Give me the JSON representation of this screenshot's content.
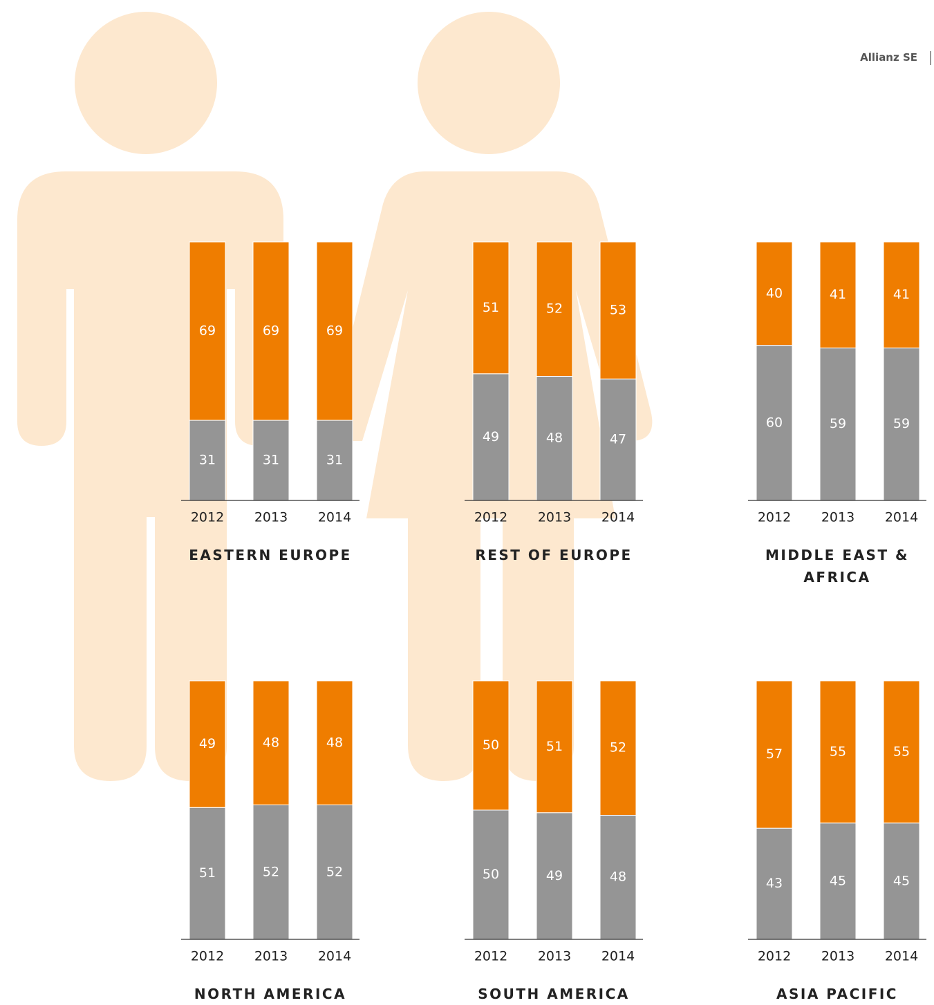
{
  "header": "Allianz SE",
  "chart_data": [
    {
      "type": "bar",
      "stacked": true,
      "title": "EASTERN EUROPE",
      "categories": [
        "2012",
        "2013",
        "2014"
      ],
      "ylim": [
        0,
        100
      ],
      "series": [
        {
          "color": "#959595",
          "values": [
            31,
            31,
            31
          ]
        },
        {
          "color": "#ef7d00",
          "values": [
            69,
            69,
            69
          ]
        }
      ]
    },
    {
      "type": "bar",
      "stacked": true,
      "title": "REST OF EUROPE",
      "categories": [
        "2012",
        "2013",
        "2014"
      ],
      "ylim": [
        0,
        100
      ],
      "series": [
        {
          "color": "#959595",
          "values": [
            49,
            48,
            47
          ]
        },
        {
          "color": "#ef7d00",
          "values": [
            51,
            52,
            53
          ]
        }
      ]
    },
    {
      "type": "bar",
      "stacked": true,
      "title": "MIDDLE EAST & AFRICA",
      "categories": [
        "2012",
        "2013",
        "2014"
      ],
      "ylim": [
        0,
        100
      ],
      "series": [
        {
          "color": "#959595",
          "values": [
            60,
            59,
            59
          ]
        },
        {
          "color": "#ef7d00",
          "values": [
            40,
            41,
            41
          ]
        }
      ]
    },
    {
      "type": "bar",
      "stacked": true,
      "title": "NORTH AMERICA",
      "categories": [
        "2012",
        "2013",
        "2014"
      ],
      "ylim": [
        0,
        100
      ],
      "series": [
        {
          "color": "#959595",
          "values": [
            51,
            52,
            52
          ]
        },
        {
          "color": "#ef7d00",
          "values": [
            49,
            48,
            48
          ]
        }
      ]
    },
    {
      "type": "bar",
      "stacked": true,
      "title": "SOUTH AMERICA",
      "categories": [
        "2012",
        "2013",
        "2014"
      ],
      "ylim": [
        0,
        100
      ],
      "series": [
        {
          "color": "#959595",
          "values": [
            50,
            49,
            48
          ]
        },
        {
          "color": "#ef7d00",
          "values": [
            50,
            51,
            52
          ]
        }
      ]
    },
    {
      "type": "bar",
      "stacked": true,
      "title": "ASIA PACIFIC",
      "categories": [
        "2012",
        "2013",
        "2014"
      ],
      "ylim": [
        0,
        100
      ],
      "series": [
        {
          "color": "#959595",
          "values": [
            43,
            45,
            45
          ]
        },
        {
          "color": "#ef7d00",
          "values": [
            57,
            55,
            55
          ]
        }
      ]
    }
  ]
}
